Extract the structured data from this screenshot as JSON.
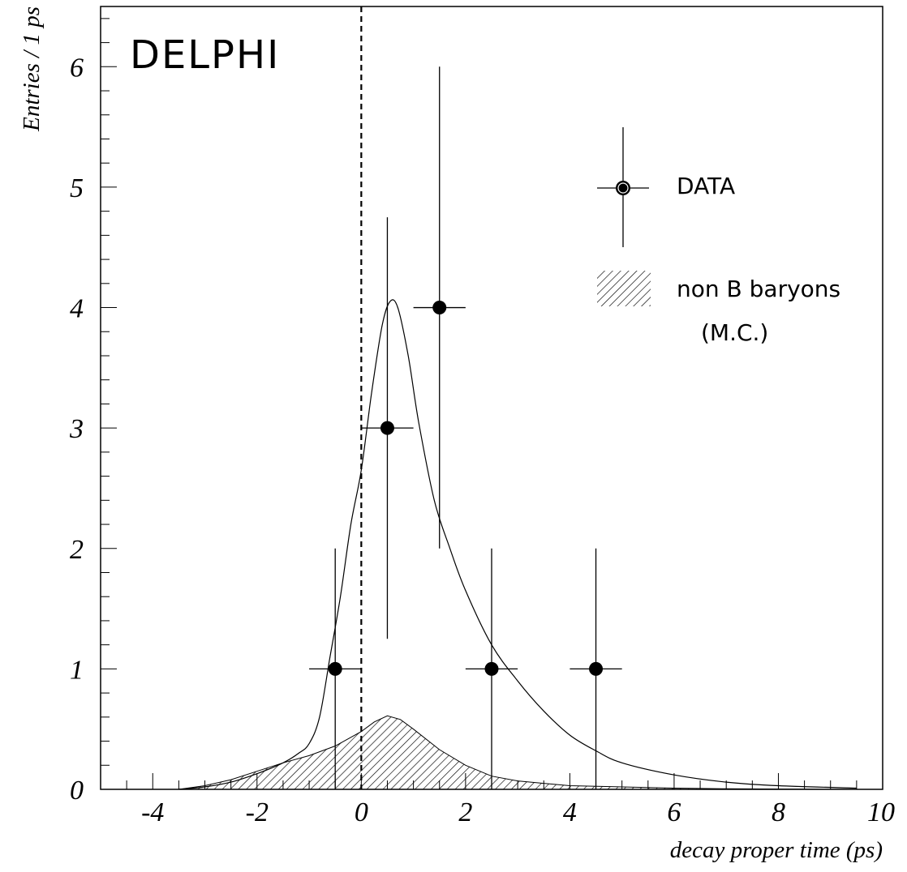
{
  "chart_data": {
    "type": "scatter",
    "experiment_label": "DELPHI",
    "xlabel": "decay proper time (ps)",
    "ylabel": "Entries / 1 ps",
    "xlim": [
      -5,
      10
    ],
    "ylim": [
      0,
      6.5
    ],
    "x_ticks": [
      "-4",
      "-2",
      "0",
      "2",
      "4",
      "6",
      "8",
      "10"
    ],
    "y_ticks": [
      "0",
      "1",
      "2",
      "3",
      "4",
      "5",
      "6"
    ],
    "grid": false,
    "legend_position": "top-right",
    "legend": {
      "data_label": "DATA",
      "mc_label_line1": "non B baryons",
      "mc_label_line2": "(M.C.)"
    },
    "zero_line": {
      "x": 0,
      "style": "dashed"
    },
    "series": [
      {
        "name": "DATA",
        "kind": "points_with_errors",
        "points": [
          {
            "x": -0.5,
            "y": 1,
            "xerr": 0.5,
            "ylow": 0,
            "yhigh": 2
          },
          {
            "x": 0.5,
            "y": 3,
            "xerr": 0.5,
            "ylow": 1.25,
            "yhigh": 4.75
          },
          {
            "x": 1.5,
            "y": 4,
            "xerr": 0.5,
            "ylow": 2,
            "yhigh": 6
          },
          {
            "x": 2.5,
            "y": 1,
            "xerr": 0.5,
            "ylow": 0,
            "yhigh": 2
          },
          {
            "x": 4.5,
            "y": 1,
            "xerr": 0.5,
            "ylow": 0,
            "yhigh": 2
          }
        ]
      },
      {
        "name": "fit",
        "kind": "curve",
        "x": [
          -3.5,
          -3,
          -2.5,
          -2,
          -1.5,
          -1.2,
          -1,
          -0.8,
          -0.6,
          -0.4,
          -0.2,
          0,
          0.2,
          0.4,
          0.55,
          0.7,
          0.9,
          1.1,
          1.4,
          1.7,
          2,
          2.5,
          3,
          3.5,
          4,
          4.5,
          5,
          6,
          7,
          8,
          9.5
        ],
        "y": [
          0.0,
          0.02,
          0.06,
          0.13,
          0.22,
          0.3,
          0.38,
          0.6,
          1.1,
          1.6,
          2.2,
          2.65,
          3.3,
          3.85,
          4.05,
          4.0,
          3.6,
          3.05,
          2.4,
          2.0,
          1.65,
          1.2,
          0.9,
          0.65,
          0.45,
          0.32,
          0.22,
          0.12,
          0.06,
          0.03,
          0.01
        ]
      },
      {
        "name": "non B baryons (M.C.)",
        "kind": "hatched_area",
        "x": [
          -3.5,
          -3,
          -2.5,
          -2,
          -1.5,
          -1,
          -0.5,
          0,
          0.25,
          0.5,
          0.75,
          1,
          1.5,
          2,
          2.5,
          3,
          3.5,
          4,
          5,
          6,
          7,
          8,
          9.5
        ],
        "y": [
          0.0,
          0.03,
          0.08,
          0.15,
          0.22,
          0.28,
          0.36,
          0.48,
          0.56,
          0.61,
          0.58,
          0.5,
          0.33,
          0.2,
          0.11,
          0.07,
          0.05,
          0.03,
          0.02,
          0.01,
          0.005,
          0.003,
          0.0
        ]
      }
    ]
  }
}
